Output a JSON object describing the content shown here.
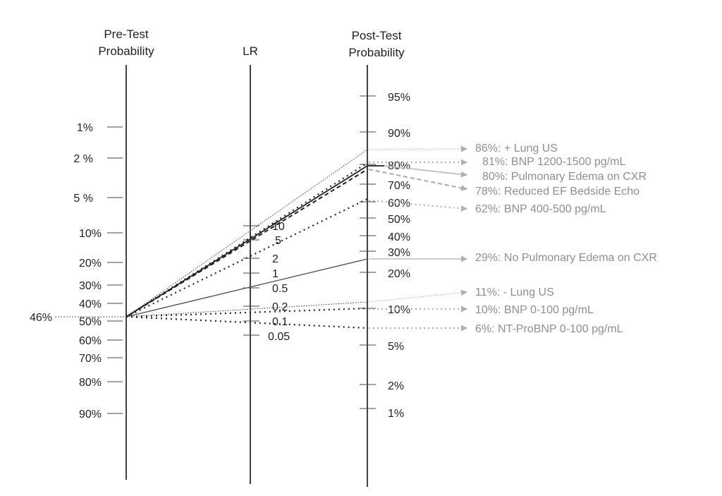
{
  "headers": {
    "pretest": [
      "Pre-Test",
      "Probability"
    ],
    "lr": "LR",
    "posttest": [
      "Post-Test",
      "Probability"
    ]
  },
  "pretest_ticks": [
    "1%",
    "2 %",
    "5 %",
    "10%",
    "20%",
    "30%",
    "40%",
    "50%",
    "60%",
    "70%",
    "80%",
    "90%"
  ],
  "lr_ticks": [
    "10",
    "5",
    "2",
    "1",
    "0.5",
    "0.2",
    "0.1",
    "0.05"
  ],
  "posttest_ticks": [
    "95%",
    "90%",
    "80%",
    "70%",
    "60%",
    "50%",
    "40%",
    "30%",
    "20%",
    "10%",
    "5%",
    "2%",
    "1%"
  ],
  "pretest_marker": "46%",
  "results": [
    {
      "label": "86%: + Lung US",
      "probability": 86,
      "style": "dotted-fine"
    },
    {
      "label": "81%: BNP 1200-1500 pg/mL",
      "probability": 81,
      "style": "dotted-heavy"
    },
    {
      "label": "80%: Pulmonary Edema on CXR",
      "probability": 80,
      "style": "solid-dark"
    },
    {
      "label": "78%: Reduced EF Bedside Echo",
      "probability": 78,
      "style": "dashed"
    },
    {
      "label": "62%: BNP 400-500 pg/mL",
      "probability": 62,
      "style": "dotted-heavy"
    },
    {
      "label": "29%: No Pulmonary Edema on CXR",
      "probability": 29,
      "style": "solid-gray"
    },
    {
      "label": "11%: - Lung US",
      "probability": 11,
      "style": "dotted-fine"
    },
    {
      "label": "10%: BNP 0-100 pg/mL",
      "probability": 10,
      "style": "dotted-heavy"
    },
    {
      "label": "6%: NT-ProBNP 0-100 pg/mL",
      "probability": 6,
      "style": "dotted-heavy"
    }
  ],
  "colors": {
    "axis": "#111111",
    "result_text": "#8f8f8f",
    "arrow": "#b0b0b0"
  }
}
